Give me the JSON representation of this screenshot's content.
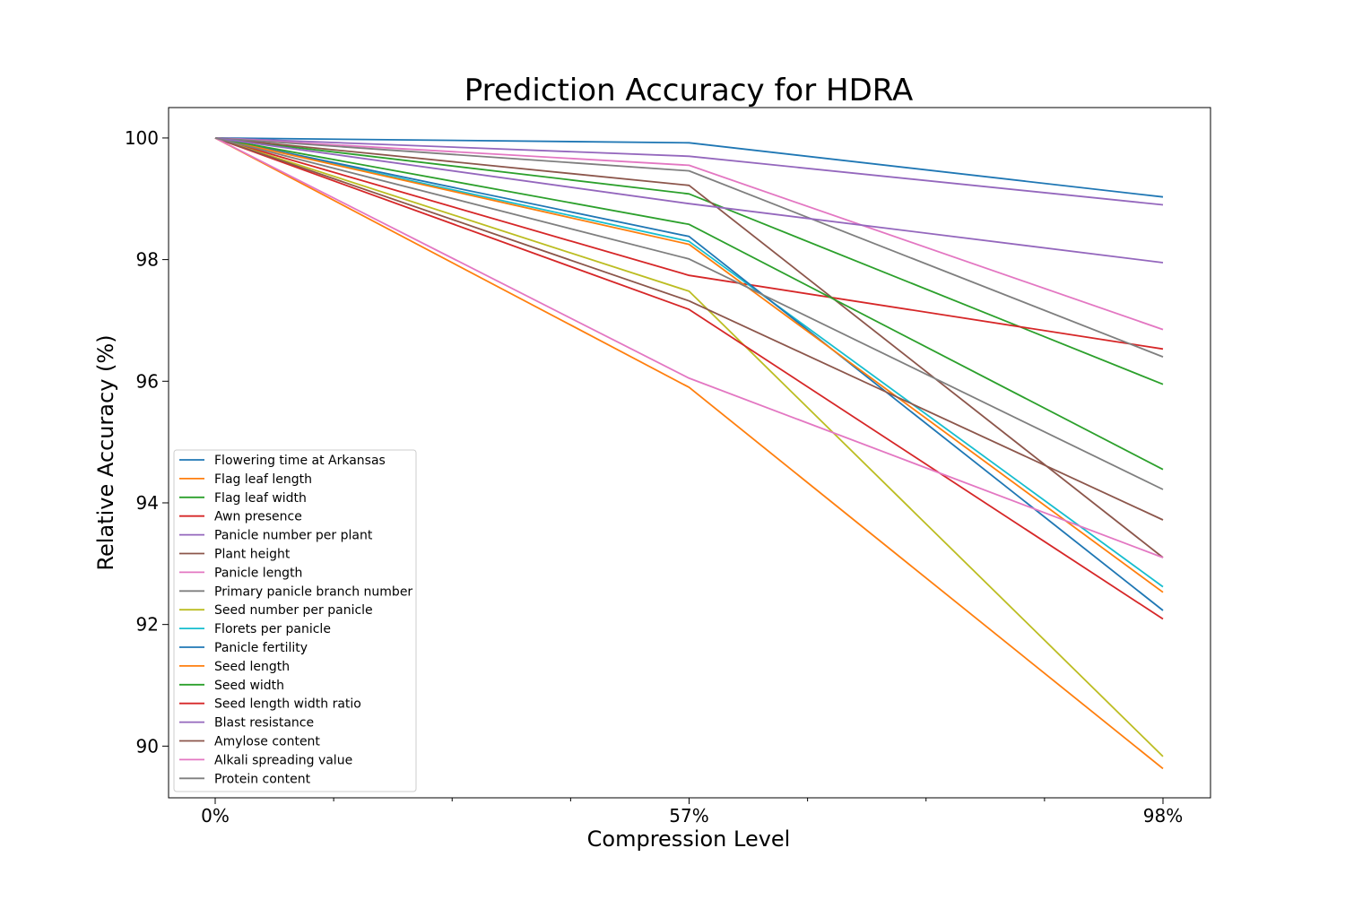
{
  "chart_data": {
    "type": "line",
    "title": "Prediction Accuracy for HDRA",
    "xlabel": "Compression Level",
    "ylabel": "Relative Accuracy (%)",
    "categories": [
      "0%",
      "57%",
      "98%"
    ],
    "ylim": [
      89.15,
      100.5
    ],
    "yticks": [
      90,
      92,
      94,
      96,
      98,
      100
    ],
    "grid": false,
    "legend_position": "lower-left",
    "series": [
      {
        "name": "Flowering time at Arkansas",
        "color": "#1f77b4",
        "values": [
          100,
          99.92,
          99.03
        ]
      },
      {
        "name": "Flag leaf length",
        "color": "#ff7f0e",
        "values": [
          100,
          95.9,
          89.63
        ]
      },
      {
        "name": "Flag leaf width",
        "color": "#2ca02c",
        "values": [
          100,
          99.08,
          95.95
        ]
      },
      {
        "name": "Awn presence",
        "color": "#d62728",
        "values": [
          100,
          97.74,
          96.53
        ]
      },
      {
        "name": "Panicle number per plant",
        "color": "#9467bd",
        "values": [
          100,
          99.7,
          98.9
        ]
      },
      {
        "name": "Plant height",
        "color": "#8c564b",
        "values": [
          100,
          99.22,
          93.1
        ]
      },
      {
        "name": "Panicle length",
        "color": "#e377c2",
        "values": [
          100,
          99.55,
          96.85
        ]
      },
      {
        "name": "Primary panicle branch number",
        "color": "#7f7f7f",
        "values": [
          100,
          99.46,
          96.4
        ]
      },
      {
        "name": "Seed number per panicle",
        "color": "#bcbd22",
        "values": [
          100,
          97.48,
          89.83
        ]
      },
      {
        "name": "Florets per panicle",
        "color": "#17becf",
        "values": [
          100,
          98.3,
          92.62
        ]
      },
      {
        "name": "Panicle fertility",
        "color": "#1f77b4",
        "values": [
          100,
          98.38,
          92.23
        ]
      },
      {
        "name": "Seed length",
        "color": "#ff7f0e",
        "values": [
          100,
          98.25,
          92.53
        ]
      },
      {
        "name": "Seed width",
        "color": "#2ca02c",
        "values": [
          100,
          98.58,
          94.55
        ]
      },
      {
        "name": "Seed length width ratio",
        "color": "#d62728",
        "values": [
          100,
          97.18,
          92.09
        ]
      },
      {
        "name": "Blast resistance",
        "color": "#9467bd",
        "values": [
          100,
          98.92,
          97.95
        ]
      },
      {
        "name": "Amylose content",
        "color": "#8c564b",
        "values": [
          100,
          97.32,
          93.72
        ]
      },
      {
        "name": "Alkali spreading value",
        "color": "#e377c2",
        "values": [
          100,
          96.05,
          93.1
        ]
      },
      {
        "name": "Protein content",
        "color": "#7f7f7f",
        "values": [
          100,
          98.01,
          94.22
        ]
      }
    ]
  }
}
